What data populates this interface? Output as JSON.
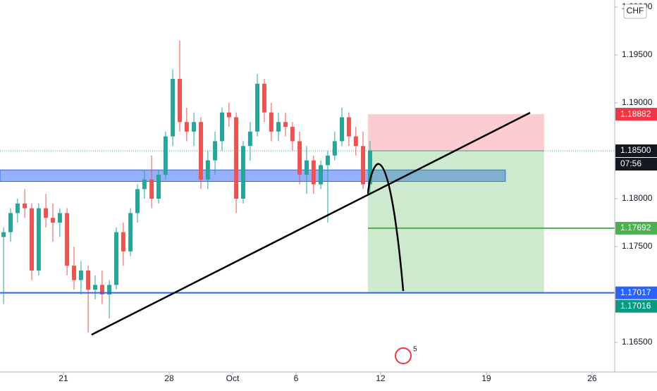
{
  "chart_data": {
    "type": "candlestick",
    "currency_tag": "CHF",
    "up_color": "#26a69a",
    "down_color": "#ef5350",
    "x": [
      -2.83,
      -2.5,
      -2.17,
      -1.83,
      -1.5,
      -1.17,
      -0.83,
      -0.5,
      -0.17,
      0.17,
      0.5,
      0.83,
      1.17,
      1.5,
      1.83,
      2.17,
      2.5,
      2.83,
      3.17,
      3.5,
      3.83,
      4.17,
      4.5,
      4.83,
      5.17,
      5.5,
      5.83,
      6.17,
      6.5,
      6.83,
      7.17,
      7.5,
      7.83,
      8.17,
      8.5,
      8.83,
      9.17,
      9.5,
      9.83,
      10.17,
      10.5,
      10.83,
      11.17,
      11.5,
      11.83,
      12.17,
      12.5,
      12.83,
      13.17,
      13.5,
      13.83,
      14.17,
      14.5
    ],
    "open": [
      1.176,
      1.1765,
      1.1785,
      1.1795,
      1.179,
      1.1725,
      1.179,
      1.178,
      1.1775,
      1.1785,
      1.173,
      1.1715,
      1.1725,
      1.1705,
      1.171,
      1.17,
      1.171,
      1.1765,
      1.1745,
      1.1785,
      1.181,
      1.182,
      1.18,
      1.1825,
      1.1865,
      1.1925,
      1.188,
      1.187,
      1.188,
      1.182,
      1.184,
      1.186,
      1.189,
      1.1885,
      1.18,
      1.1855,
      1.187,
      1.192,
      1.189,
      1.187,
      1.188,
      1.1875,
      1.186,
      1.1825,
      1.184,
      1.1815,
      1.1835,
      1.1845,
      1.186,
      1.1885,
      1.1865,
      1.1855,
      1.1815
    ],
    "high": [
      1.177,
      1.179,
      1.18,
      1.181,
      1.1795,
      1.1795,
      1.1805,
      1.1795,
      1.179,
      1.179,
      1.175,
      1.1735,
      1.173,
      1.172,
      1.1725,
      1.1715,
      1.177,
      1.1775,
      1.179,
      1.1815,
      1.183,
      1.1845,
      1.183,
      1.187,
      1.1935,
      1.1965,
      1.1895,
      1.189,
      1.1885,
      1.185,
      1.187,
      1.1895,
      1.19,
      1.189,
      1.186,
      1.188,
      1.193,
      1.1925,
      1.19,
      1.189,
      1.189,
      1.188,
      1.187,
      1.1855,
      1.1845,
      1.184,
      1.185,
      1.187,
      1.1895,
      1.189,
      1.1875,
      1.187,
      1.186
    ],
    "low": [
      1.169,
      1.1755,
      1.1775,
      1.178,
      1.1715,
      1.172,
      1.177,
      1.1755,
      1.176,
      1.172,
      1.1705,
      1.17,
      1.166,
      1.1695,
      1.169,
      1.1675,
      1.1705,
      1.173,
      1.174,
      1.1775,
      1.18,
      1.179,
      1.1795,
      1.182,
      1.1855,
      1.187,
      1.186,
      1.1855,
      1.181,
      1.181,
      1.1825,
      1.185,
      1.1875,
      1.1785,
      1.1795,
      1.184,
      1.1865,
      1.188,
      1.186,
      1.186,
      1.1865,
      1.185,
      1.1815,
      1.1805,
      1.1805,
      1.181,
      1.1775,
      1.184,
      1.1855,
      1.1855,
      1.1845,
      1.181,
      1.1805
    ],
    "close": [
      1.1765,
      1.1785,
      1.1795,
      1.179,
      1.1725,
      1.179,
      1.178,
      1.1775,
      1.1785,
      1.173,
      1.1715,
      1.1725,
      1.1705,
      1.171,
      1.17,
      1.171,
      1.1765,
      1.1745,
      1.1785,
      1.181,
      1.182,
      1.18,
      1.1825,
      1.1865,
      1.1925,
      1.188,
      1.187,
      1.188,
      1.182,
      1.184,
      1.186,
      1.189,
      1.1885,
      1.18,
      1.1855,
      1.187,
      1.192,
      1.189,
      1.187,
      1.188,
      1.1875,
      1.186,
      1.1825,
      1.184,
      1.1815,
      1.1835,
      1.1845,
      1.186,
      1.1885,
      1.1865,
      1.1855,
      1.1815,
      1.185
    ],
    "xlim": [
      -3,
      26.07
    ],
    "xticks": [
      {
        "value": 0,
        "label": "21"
      },
      {
        "value": 5,
        "label": "28"
      },
      {
        "value": 8,
        "label": "Oct"
      },
      {
        "value": 11,
        "label": "6"
      },
      {
        "value": 15,
        "label": "12"
      },
      {
        "value": 20,
        "label": "19"
      },
      {
        "value": 25,
        "label": "26"
      }
    ],
    "ylim": [
      1.16191,
      1.20074
    ],
    "yticks": [
      {
        "value": 1.165,
        "label": "1.16500"
      },
      {
        "value": 1.17,
        "label": "1.17000"
      },
      {
        "value": 1.175,
        "label": "1.17500"
      },
      {
        "value": 1.18,
        "label": "1.18000"
      },
      {
        "value": 1.185,
        "label": "1.18500"
      },
      {
        "value": 1.19,
        "label": "1.19000"
      },
      {
        "value": 1.195,
        "label": "1.19500"
      },
      {
        "value": 1.2,
        "label": "1.20000"
      }
    ],
    "grid": false,
    "support_zone": {
      "x": [
        -3,
        20.9
      ],
      "y": [
        1.183,
        1.1818
      ],
      "color": "#2962ff"
    },
    "support_line": {
      "value": 1.17017,
      "color": "#2962ff"
    },
    "trendline": {
      "x": [
        1.33,
        22.07
      ],
      "y": [
        1.1658,
        1.18897
      ]
    },
    "position": {
      "x": [
        14.4,
        22.73
      ],
      "entry": 1.185,
      "stop": 1.18882,
      "target": 1.17017
    },
    "target_line": {
      "x": [
        14.4,
        26.07
      ],
      "value": 1.17692,
      "color": "#4caf50"
    },
    "price_labels": [
      {
        "value": 1.18882,
        "label": "1.18882",
        "color": "#f23645"
      },
      {
        "value": 1.185,
        "label": "1.18500",
        "color": "#131722"
      },
      {
        "value": 1.17692,
        "label": "1.17692",
        "color": "#4caf50"
      },
      {
        "value": 1.17017,
        "label": "1.17017",
        "color": "#2962ff"
      },
      {
        "value": 1.17016,
        "label": "1.17016",
        "color": "#089981"
      }
    ],
    "countdown": "07:56",
    "events_badge": "5"
  }
}
